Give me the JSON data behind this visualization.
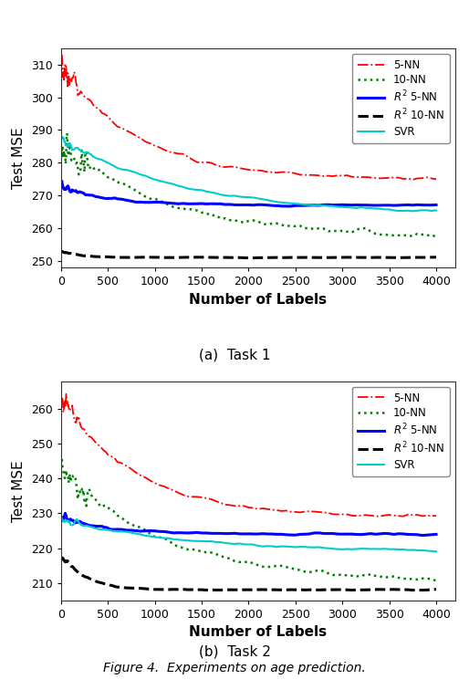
{
  "fig_width": 5.14,
  "fig_height": 7.56,
  "dpi": 100,
  "title": "Figure 4.  Experiments on age prediction.",
  "subplot_a_label": "(a)  Task 1",
  "subplot_b_label": "(b)  Task 2",
  "xlabel": "Number of Labels",
  "ylabel": "Test MSE",
  "legend_entries": [
    "5-NN",
    "10-NN",
    "$R^2$ 5-NN",
    "$R^2$ 10-NN",
    "SVR"
  ],
  "colors": {
    "nn5": "#FF0000",
    "nn10": "#008000",
    "r2_nn5": "#0000FF",
    "r2_nn10": "#000000",
    "svr": "#00CCCC"
  },
  "plot1": {
    "ylim": [
      248,
      315
    ],
    "yticks": [
      250,
      260,
      270,
      280,
      290,
      300,
      310
    ],
    "xlim": [
      0,
      4200
    ],
    "xticks": [
      0,
      500,
      1000,
      1500,
      2000,
      2500,
      3000,
      3500,
      4000
    ]
  },
  "plot2": {
    "ylim": [
      205,
      268
    ],
    "yticks": [
      210,
      220,
      230,
      240,
      250,
      260
    ],
    "xlim": [
      0,
      4200
    ],
    "xticks": [
      0,
      500,
      1000,
      1500,
      2000,
      2500,
      3000,
      3500,
      4000
    ]
  }
}
